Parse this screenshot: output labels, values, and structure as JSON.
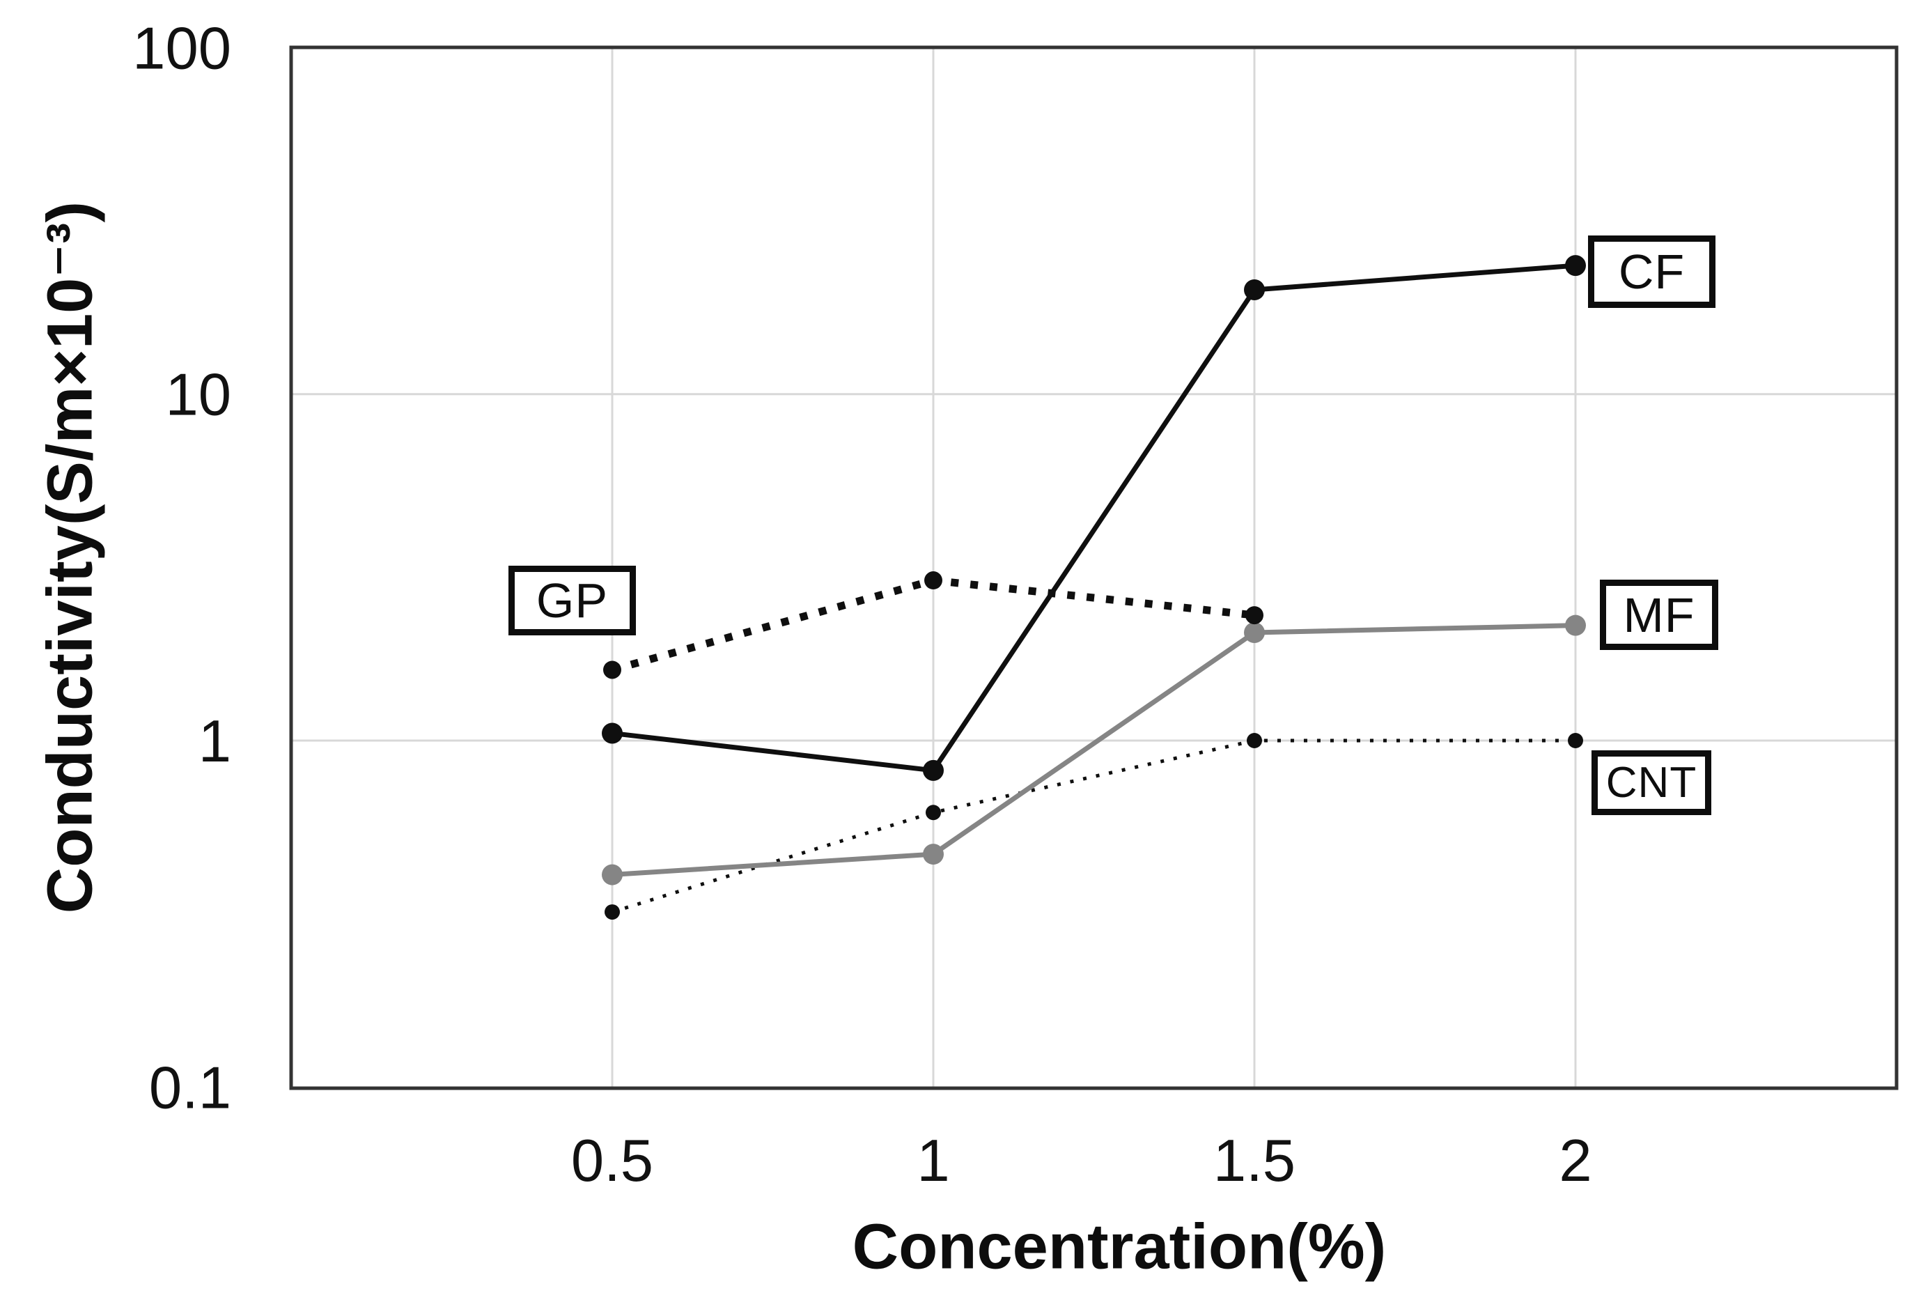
{
  "chart_data": {
    "type": "line",
    "title": "",
    "xlabel": "Concentration(%)",
    "ylabel": "Conductivity(S/m×10⁻³)",
    "x_range": [
      0,
      2.5
    ],
    "y_range": [
      0.1,
      100
    ],
    "y_scale": "log",
    "grid": true,
    "x_ticks": [
      0.5,
      1,
      1.5,
      2
    ],
    "x_tick_labels": [
      "0.5",
      "1",
      "1.5",
      "2"
    ],
    "y_ticks": [
      100,
      10,
      1,
      0.1
    ],
    "y_tick_labels": [
      "100",
      "10",
      "1",
      "0.1"
    ],
    "legend_position": "boxed-labels-inline",
    "series": [
      {
        "name": "CF",
        "style": "solid",
        "color": "#0f0f0f",
        "x": [
          0.5,
          1,
          1.5,
          2
        ],
        "values": [
          1.05,
          0.82,
          20,
          23.5
        ]
      },
      {
        "name": "GP",
        "style": "dotted-thick",
        "color": "#0f0f0f",
        "x": [
          0.5,
          1,
          1.5
        ],
        "values": [
          1.6,
          2.9,
          2.3
        ]
      },
      {
        "name": "MF",
        "style": "solid",
        "color": "#858585",
        "x": [
          0.5,
          1,
          1.5,
          2
        ],
        "values": [
          0.41,
          0.47,
          2.05,
          2.15
        ]
      },
      {
        "name": "CNT",
        "style": "dotted-thin",
        "color": "#0f0f0f",
        "x": [
          0.5,
          1,
          1.5,
          2
        ],
        "values": [
          0.32,
          0.62,
          1.0,
          1.0
        ]
      }
    ]
  },
  "colors": {
    "gridline": "#d8d8d8",
    "frame": "#333333",
    "black_series": "#0f0f0f",
    "gray_series": "#858585",
    "background": "#ffffff"
  }
}
